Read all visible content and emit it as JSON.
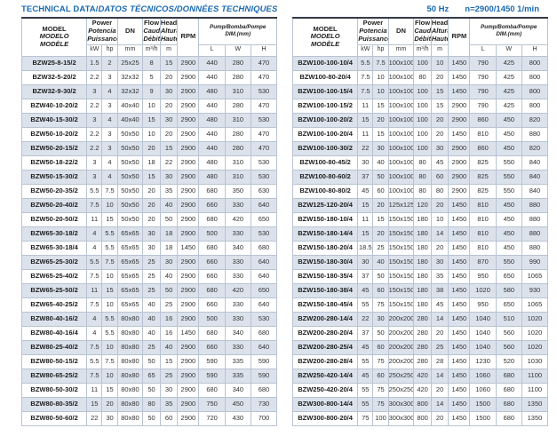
{
  "titles": {
    "main_regular": "TECHNICAL DATA/",
    "main_italic": "DATOS TÉCNICOS/DONNÉES TECHNIQUES",
    "frequency": "50 Hz",
    "speed": "n=2900/1450 1/min"
  },
  "colors": {
    "accent_blue": "#1a6ab3",
    "row_shade": "#dbe2ec",
    "border": "#b9c3d2",
    "top_border": "#333b46",
    "text": "#2e2e2e"
  },
  "header": {
    "model": [
      "MODEL",
      "MODELO",
      "MODÈLE"
    ],
    "power": [
      "Power",
      "Potencia",
      "Puissance"
    ],
    "power_units": [
      "kW",
      "hp"
    ],
    "dn": "DN",
    "dn_unit": "mm",
    "flow": [
      "Flow",
      "Caudal",
      "Débit"
    ],
    "flow_unit": "m³/h",
    "head": [
      "Head",
      "Altura",
      "Hauteur"
    ],
    "head_unit": "m",
    "rpm": "RPM",
    "dim_line1": "Pump/Bomba/Pompe",
    "dim_line2": "DIM.(mm)",
    "dim_units": [
      "L",
      "W",
      "H"
    ]
  },
  "tables": {
    "left": {
      "rows": [
        [
          "BZW25-8-15/2",
          "1.5",
          "2",
          "25x25",
          "8",
          "15",
          "2900",
          "440",
          "280",
          "470"
        ],
        [
          "BZW32-5-20/2",
          "2.2",
          "3",
          "32x32",
          "5",
          "20",
          "2900",
          "440",
          "280",
          "470"
        ],
        [
          "BZW32-9-30/2",
          "3",
          "4",
          "32x32",
          "9",
          "30",
          "2900",
          "480",
          "310",
          "530"
        ],
        [
          "BZW40-10-20/2",
          "2.2",
          "3",
          "40x40",
          "10",
          "20",
          "2900",
          "440",
          "280",
          "470"
        ],
        [
          "BZW40-15-30/2",
          "3",
          "4",
          "40x40",
          "15",
          "30",
          "2900",
          "480",
          "310",
          "530"
        ],
        [
          "BZW50-10-20/2",
          "2.2",
          "3",
          "50x50",
          "10",
          "20",
          "2900",
          "440",
          "280",
          "470"
        ],
        [
          "BZW50-20-15/2",
          "2.2",
          "3",
          "50x50",
          "20",
          "15",
          "2900",
          "440",
          "280",
          "470"
        ],
        [
          "BZW50-18-22/2",
          "3",
          "4",
          "50x50",
          "18",
          "22",
          "2900",
          "480",
          "310",
          "530"
        ],
        [
          "BZW50-15-30/2",
          "3",
          "4",
          "50x50",
          "15",
          "30",
          "2900",
          "480",
          "310",
          "530"
        ],
        [
          "BZW50-20-35/2",
          "5.5",
          "7.5",
          "50x50",
          "20",
          "35",
          "2900",
          "680",
          "350",
          "630"
        ],
        [
          "BZW50-20-40/2",
          "7.5",
          "10",
          "50x50",
          "20",
          "40",
          "2900",
          "660",
          "330",
          "640"
        ],
        [
          "BZW50-20-50/2",
          "11",
          "15",
          "50x50",
          "20",
          "50",
          "2900",
          "680",
          "420",
          "650"
        ],
        [
          "BZW65-30-18/2",
          "4",
          "5.5",
          "65x65",
          "30",
          "18",
          "2900",
          "500",
          "330",
          "530"
        ],
        [
          "BZW65-30-18/4",
          "4",
          "5.5",
          "65x65",
          "30",
          "18",
          "1450",
          "680",
          "340",
          "680"
        ],
        [
          "BZW65-25-30/2",
          "5.5",
          "7.5",
          "65x65",
          "25",
          "30",
          "2900",
          "660",
          "330",
          "640"
        ],
        [
          "BZW65-25-40/2",
          "7.5",
          "10",
          "65x65",
          "25",
          "40",
          "2900",
          "660",
          "330",
          "640"
        ],
        [
          "BZW65-25-50/2",
          "11",
          "15",
          "65x65",
          "25",
          "50",
          "2900",
          "680",
          "420",
          "650"
        ],
        [
          "BZW65-40-25/2",
          "7.5",
          "10",
          "65x65",
          "40",
          "25",
          "2900",
          "660",
          "330",
          "640"
        ],
        [
          "BZW80-40-16/2",
          "4",
          "5.5",
          "80x80",
          "40",
          "16",
          "2900",
          "500",
          "330",
          "530"
        ],
        [
          "BZW80-40-16/4",
          "4",
          "5.5",
          "80x80",
          "40",
          "16",
          "1450",
          "680",
          "340",
          "680"
        ],
        [
          "BZW80-25-40/2",
          "7.5",
          "10",
          "80x80",
          "25",
          "40",
          "2900",
          "660",
          "330",
          "640"
        ],
        [
          "BZW80-50-15/2",
          "5.5",
          "7.5",
          "80x80",
          "50",
          "15",
          "2900",
          "590",
          "335",
          "590"
        ],
        [
          "BZW80-65-25/2",
          "7.5",
          "10",
          "80x80",
          "65",
          "25",
          "2900",
          "590",
          "335",
          "590"
        ],
        [
          "BZW80-50-30/2",
          "11",
          "15",
          "80x80",
          "50",
          "30",
          "2900",
          "680",
          "340",
          "680"
        ],
        [
          "BZW80-80-35/2",
          "15",
          "20",
          "80x80",
          "80",
          "35",
          "2900",
          "750",
          "450",
          "730"
        ],
        [
          "BZW80-50-60/2",
          "22",
          "30",
          "80x80",
          "50",
          "60",
          "2900",
          "720",
          "430",
          "700"
        ]
      ]
    },
    "right": {
      "rows": [
        [
          "BZW100-100-10/4",
          "5.5",
          "7.5",
          "100x100",
          "100",
          "10",
          "1450",
          "790",
          "425",
          "800"
        ],
        [
          "BZW100-80-20/4",
          "7.5",
          "10",
          "100x100",
          "80",
          "20",
          "1450",
          "790",
          "425",
          "800"
        ],
        [
          "BZW100-100-15/4",
          "7.5",
          "10",
          "100x100",
          "100",
          "15",
          "1450",
          "790",
          "425",
          "800"
        ],
        [
          "BZW100-100-15/2",
          "11",
          "15",
          "100x100",
          "100",
          "15",
          "2900",
          "790",
          "425",
          "800"
        ],
        [
          "BZW100-100-20/2",
          "15",
          "20",
          "100x100",
          "100",
          "20",
          "2900",
          "860",
          "450",
          "820"
        ],
        [
          "BZW100-100-20/4",
          "11",
          "15",
          "100x100",
          "100",
          "20",
          "1450",
          "810",
          "450",
          "880"
        ],
        [
          "BZW100-100-30/2",
          "22",
          "30",
          "100x100",
          "100",
          "30",
          "2900",
          "860",
          "450",
          "820"
        ],
        [
          "BZW100-80-45/2",
          "30",
          "40",
          "100x100",
          "80",
          "45",
          "2900",
          "825",
          "550",
          "840"
        ],
        [
          "BZW100-80-60/2",
          "37",
          "50",
          "100x100",
          "80",
          "60",
          "2900",
          "825",
          "550",
          "840"
        ],
        [
          "BZW100-80-80/2",
          "45",
          "60",
          "100x100",
          "80",
          "80",
          "2900",
          "825",
          "550",
          "840"
        ],
        [
          "BZW125-120-20/4",
          "15",
          "20",
          "125x125",
          "120",
          "20",
          "1450",
          "810",
          "450",
          "880"
        ],
        [
          "BZW150-180-10/4",
          "11",
          "15",
          "150x150",
          "180",
          "10",
          "1450",
          "810",
          "450",
          "880"
        ],
        [
          "BZW150-180-14/4",
          "15",
          "20",
          "150x150",
          "180",
          "14",
          "1450",
          "810",
          "450",
          "880"
        ],
        [
          "BZW150-180-20/4",
          "18.5",
          "25",
          "150x150",
          "180",
          "20",
          "1450",
          "810",
          "450",
          "880"
        ],
        [
          "BZW150-180-30/4",
          "30",
          "40",
          "150x150",
          "180",
          "30",
          "1450",
          "870",
          "550",
          "990"
        ],
        [
          "BZW150-180-35/4",
          "37",
          "50",
          "150x150",
          "180",
          "35",
          "1450",
          "950",
          "650",
          "1065"
        ],
        [
          "BZW150-180-38/4",
          "45",
          "60",
          "150x150",
          "180",
          "38",
          "1450",
          "1020",
          "580",
          "930"
        ],
        [
          "BZW150-180-45/4",
          "55",
          "75",
          "150x150",
          "180",
          "45",
          "1450",
          "950",
          "650",
          "1065"
        ],
        [
          "BZW200-280-14/4",
          "22",
          "30",
          "200x200",
          "280",
          "14",
          "1450",
          "1040",
          "510",
          "1020"
        ],
        [
          "BZW200-280-20/4",
          "37",
          "50",
          "200x200",
          "280",
          "20",
          "1450",
          "1040",
          "560",
          "1020"
        ],
        [
          "BZW200-280-25/4",
          "45",
          "60",
          "200x200",
          "280",
          "25",
          "1450",
          "1040",
          "560",
          "1020"
        ],
        [
          "BZW200-280-28/4",
          "55",
          "75",
          "200x200",
          "280",
          "28",
          "1450",
          "1230",
          "520",
          "1030"
        ],
        [
          "BZW250-420-14/4",
          "45",
          "60",
          "250x250",
          "420",
          "14",
          "1450",
          "1060",
          "680",
          "1100"
        ],
        [
          "BZW250-420-20/4",
          "55",
          "75",
          "250x250",
          "420",
          "20",
          "1450",
          "1060",
          "680",
          "1100"
        ],
        [
          "BZW300-800-14/4",
          "55",
          "75",
          "300x300",
          "800",
          "14",
          "1450",
          "1500",
          "680",
          "1350"
        ],
        [
          "BZW300-800-20/4",
          "75",
          "100",
          "300x300",
          "800",
          "20",
          "1450",
          "1500",
          "680",
          "1350"
        ]
      ]
    }
  }
}
